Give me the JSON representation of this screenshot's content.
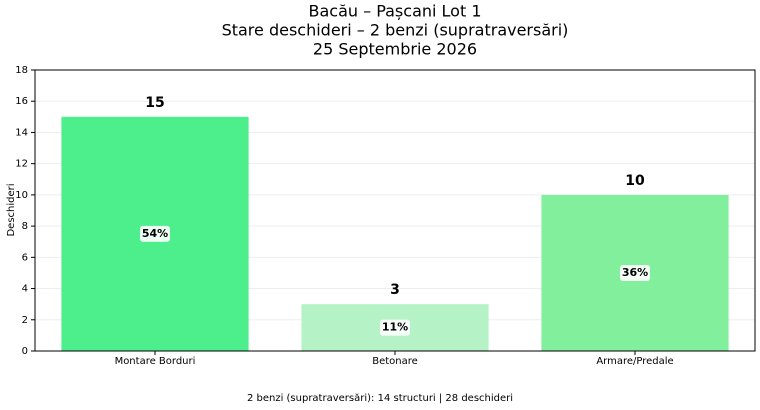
{
  "chart_data": {
    "type": "bar",
    "title": [
      "Bacău – Pașcani Lot 1",
      "Stare deschideri – 2 benzi (supratraversări)",
      "25 Septembrie 2026"
    ],
    "ylabel": "Deschideri",
    "categories": [
      "Montare Borduri",
      "Betonare",
      "Armare/Predale"
    ],
    "values": [
      15,
      3,
      10
    ],
    "colors": [
      "#4cef8c",
      "#b5f2c6",
      "#82ef9d"
    ],
    "shares": [
      54,
      11,
      36
    ],
    "share_labels": [
      "54%",
      "11%",
      "36%"
    ],
    "ylim": [
      0,
      18
    ],
    "yticks": [
      0,
      2,
      4,
      6,
      8,
      10,
      12,
      14,
      16,
      18
    ],
    "grid": true,
    "footnote": "2 benzi (supratraversări): 14 structuri | 28 deschideri"
  }
}
